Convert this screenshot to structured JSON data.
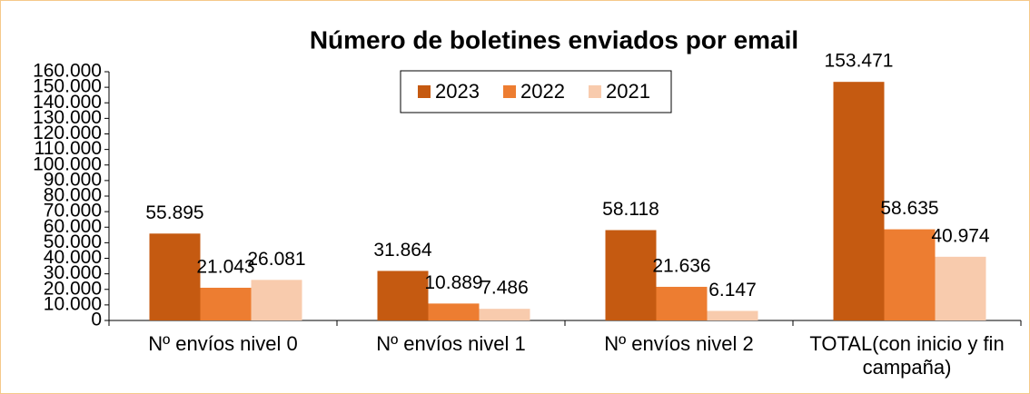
{
  "chart_data": {
    "type": "bar",
    "title": "Número de boletines enviados por email",
    "categories": [
      "Nº envíos nivel 0",
      "Nº envíos nivel 1",
      "Nº envíos nivel 2",
      "TOTAL(con inicio y fin campaña)"
    ],
    "series": [
      {
        "name": "2023",
        "color": "#c55a11",
        "values": [
          55895,
          31864,
          58118,
          153471
        ],
        "value_labels": [
          "55.895",
          "31.864",
          "58.118",
          "153.471"
        ]
      },
      {
        "name": "2022",
        "color": "#ed7d31",
        "values": [
          21043,
          10889,
          21636,
          58635
        ],
        "value_labels": [
          "21.043",
          "10.889",
          "21.636",
          "58.635"
        ]
      },
      {
        "name": "2021",
        "color": "#f8cbad",
        "values": [
          26081,
          7486,
          6147,
          40974
        ],
        "value_labels": [
          "26.081",
          "7.486",
          "6.147",
          "40.974"
        ]
      }
    ],
    "ylim": [
      0,
      160000
    ],
    "yticks": [
      0,
      {
        "value": 10000,
        "label": "10.000"
      },
      {
        "value": 20000,
        "label": "20.000"
      },
      {
        "value": 30000,
        "label": "30.000"
      },
      {
        "value": 40000,
        "label": "40.000"
      },
      {
        "value": 50000,
        "label": "50.000"
      },
      {
        "value": 60000,
        "label": "60.000"
      },
      {
        "value": 70000,
        "label": "70.000"
      },
      {
        "value": 80000,
        "label": "80.000"
      },
      {
        "value": 90000,
        "label": "90.000"
      },
      {
        "value": 100000,
        "label": "100.000"
      },
      {
        "value": 110000,
        "label": "110.000"
      },
      {
        "value": 120000,
        "label": "120.000"
      },
      {
        "value": 130000,
        "label": "130.000"
      },
      {
        "value": 140000,
        "label": "140.000"
      },
      {
        "value": 150000,
        "label": "150.000"
      },
      {
        "value": 160000,
        "label": "160.000"
      }
    ],
    "grid": false,
    "legend": "top"
  }
}
